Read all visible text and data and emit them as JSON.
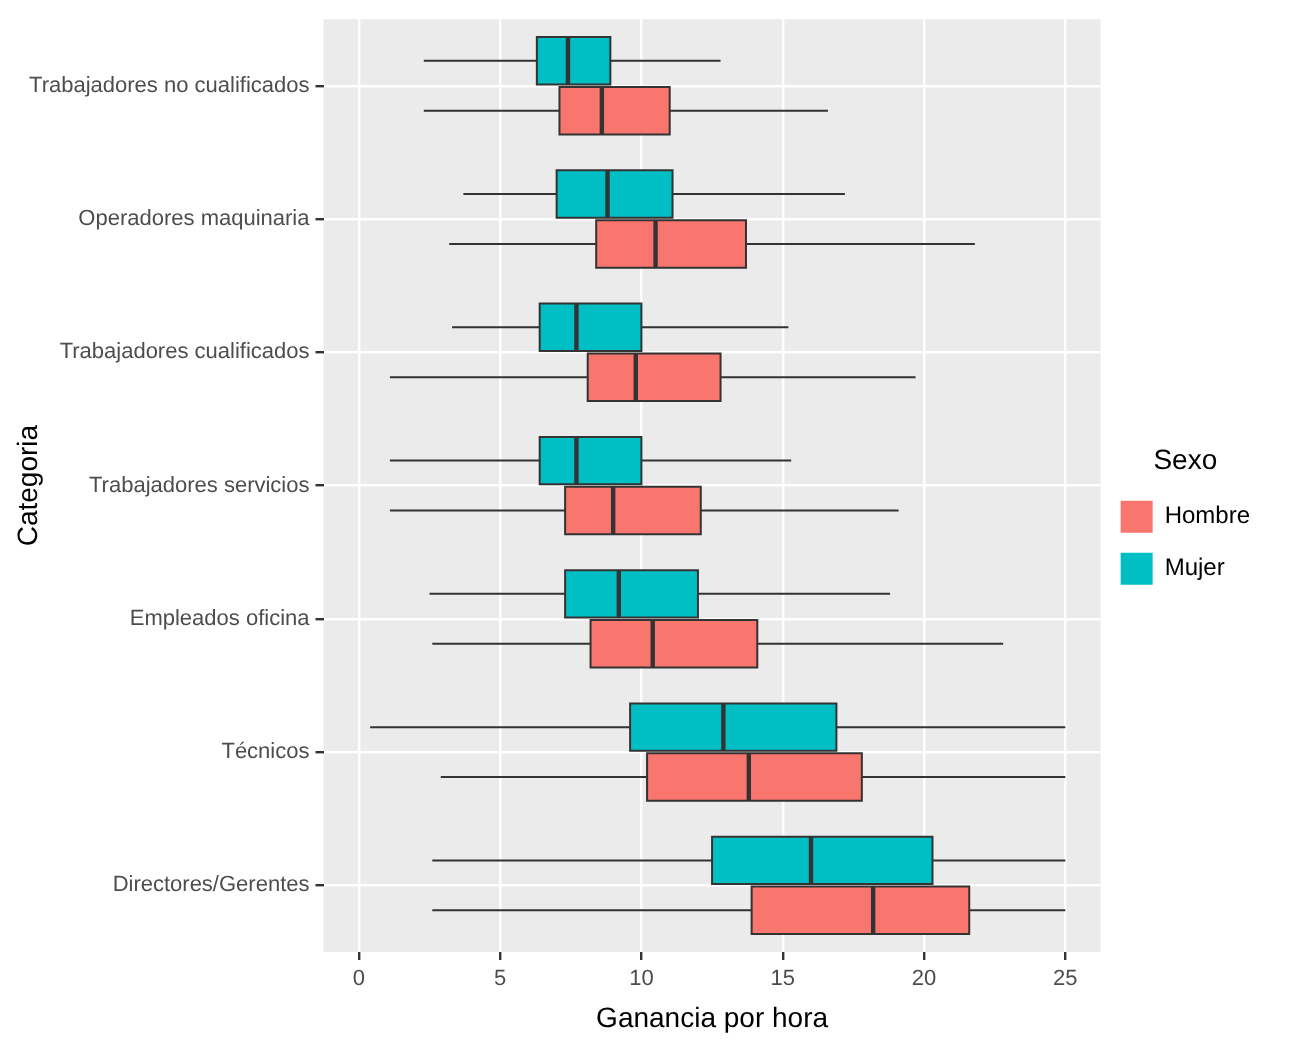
{
  "chart_data": {
    "type": "box",
    "orientation": "horizontal",
    "xlabel": "Ganancia por hora",
    "ylabel": "Categoria",
    "legend_title": "Sexo",
    "legend": "right",
    "grid": true,
    "categories": [
      "Trabajadores no cualificados",
      "Operadores maquinaria",
      "Trabajadores cualificados",
      "Trabajadores servicios",
      "Empleados oficina",
      "Técnicos",
      "Directores/Gerentes"
    ],
    "xlim": [
      -1.25,
      26.25
    ],
    "xticks": [
      0,
      5,
      10,
      15,
      20,
      25
    ],
    "series": [
      {
        "name": "Hombre",
        "color": "#f8766d",
        "boxes": [
          {
            "low": 2.3,
            "q1": 7.1,
            "median": 8.6,
            "q3": 11.0,
            "high": 16.6
          },
          {
            "low": 3.2,
            "q1": 8.4,
            "median": 10.5,
            "q3": 13.7,
            "high": 21.8
          },
          {
            "low": 1.1,
            "q1": 8.1,
            "median": 9.8,
            "q3": 12.8,
            "high": 19.7
          },
          {
            "low": 1.1,
            "q1": 7.3,
            "median": 9.0,
            "q3": 12.1,
            "high": 19.1
          },
          {
            "low": 2.6,
            "q1": 8.2,
            "median": 10.4,
            "q3": 14.1,
            "high": 22.8
          },
          {
            "low": 2.9,
            "q1": 10.2,
            "median": 13.8,
            "q3": 17.8,
            "high": 25
          },
          {
            "low": 2.6,
            "q1": 13.9,
            "median": 18.2,
            "q3": 21.6,
            "high": 25
          }
        ]
      },
      {
        "name": "Mujer",
        "color": "#00bfc4",
        "boxes": [
          {
            "low": 2.3,
            "q1": 6.3,
            "median": 7.4,
            "q3": 8.9,
            "high": 12.8
          },
          {
            "low": 3.7,
            "q1": 7.0,
            "median": 8.8,
            "q3": 11.1,
            "high": 17.2
          },
          {
            "low": 3.3,
            "q1": 6.4,
            "median": 7.7,
            "q3": 10.0,
            "high": 15.2
          },
          {
            "low": 1.1,
            "q1": 6.4,
            "median": 7.7,
            "q3": 10.0,
            "high": 15.3
          },
          {
            "low": 2.5,
            "q1": 7.3,
            "median": 9.2,
            "q3": 12.0,
            "high": 18.8
          },
          {
            "low": 0.4,
            "q1": 9.6,
            "median": 12.9,
            "q3": 16.9,
            "high": 25
          },
          {
            "low": 2.6,
            "q1": 12.5,
            "median": 16.0,
            "q3": 20.3,
            "high": 25
          }
        ]
      }
    ]
  }
}
